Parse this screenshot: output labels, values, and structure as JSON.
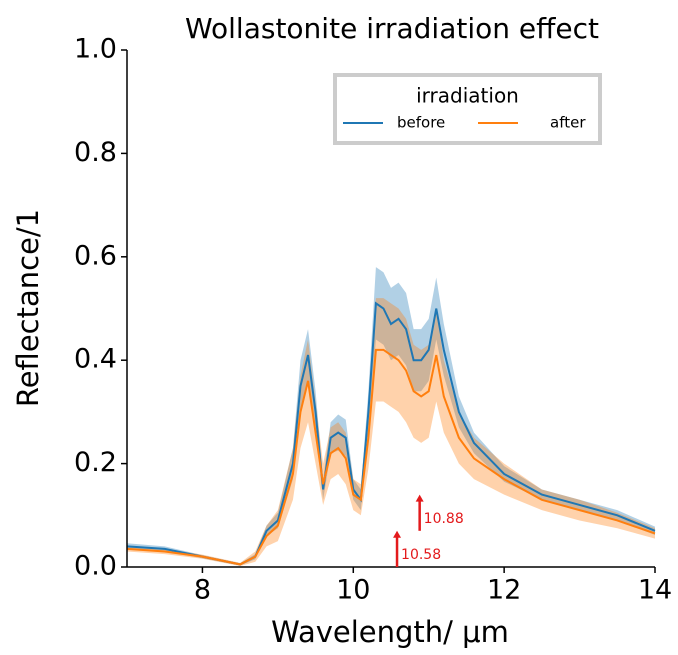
{
  "chart_data": {
    "type": "line",
    "title": "Wollastonite irradiation effect",
    "x_label": "Wavelength/ μm",
    "y_label": "Reflectance/1",
    "xlim": [
      7,
      14
    ],
    "xticks": [
      8,
      10,
      12,
      14
    ],
    "ylim": [
      0,
      1
    ],
    "yticks": [
      {
        "value": 0,
        "label": "0.0"
      },
      0.2,
      0.4,
      0.6,
      0.8,
      {
        "value": 1,
        "label": "1.0"
      }
    ],
    "legend_title": "irradiation",
    "legend_position": "upper right",
    "x": [
      7,
      7.5,
      8,
      8.5,
      8.7,
      8.85,
      9,
      9.2,
      9.3,
      9.4,
      9.5,
      9.6,
      9.7,
      9.8,
      9.9,
      10,
      10.1,
      10.2,
      10.3,
      10.4,
      10.5,
      10.6,
      10.7,
      10.8,
      10.9,
      11,
      11.1,
      11.2,
      11.4,
      11.6,
      12,
      12.5,
      13,
      13.5,
      14
    ],
    "series": [
      {
        "name": "before",
        "color": "#1f77b4",
        "values": [
          0.04,
          0.035,
          0.02,
          0.005,
          0.02,
          0.07,
          0.09,
          0.2,
          0.35,
          0.41,
          0.3,
          0.15,
          0.25,
          0.26,
          0.25,
          0.15,
          0.13,
          0.3,
          0.51,
          0.5,
          0.47,
          0.48,
          0.46,
          0.4,
          0.4,
          0.42,
          0.5,
          0.42,
          0.3,
          0.24,
          0.18,
          0.14,
          0.12,
          0.1,
          0.07
        ],
        "errors": [
          0.006,
          0.005,
          0.003,
          0.002,
          0.005,
          0.01,
          0.015,
          0.03,
          0.05,
          0.05,
          0.04,
          0.02,
          0.03,
          0.035,
          0.035,
          0.02,
          0.02,
          0.04,
          0.07,
          0.07,
          0.07,
          0.07,
          0.07,
          0.06,
          0.06,
          0.06,
          0.06,
          0.05,
          0.03,
          0.02,
          0.015,
          0.01,
          0.01,
          0.01,
          0.008
        ]
      },
      {
        "name": "after",
        "color": "#ff7f0e",
        "values": [
          0.035,
          0.03,
          0.02,
          0.005,
          0.02,
          0.06,
          0.08,
          0.18,
          0.3,
          0.36,
          0.26,
          0.16,
          0.22,
          0.23,
          0.21,
          0.14,
          0.13,
          0.25,
          0.42,
          0.42,
          0.41,
          0.4,
          0.38,
          0.34,
          0.33,
          0.34,
          0.41,
          0.33,
          0.25,
          0.21,
          0.17,
          0.13,
          0.11,
          0.09,
          0.065
        ],
        "errors": [
          0.005,
          0.005,
          0.004,
          0.003,
          0.01,
          0.02,
          0.03,
          0.05,
          0.07,
          0.08,
          0.06,
          0.04,
          0.05,
          0.05,
          0.05,
          0.03,
          0.03,
          0.06,
          0.1,
          0.1,
          0.1,
          0.1,
          0.1,
          0.09,
          0.09,
          0.09,
          0.09,
          0.07,
          0.05,
          0.04,
          0.03,
          0.02,
          0.02,
          0.015,
          0.01
        ]
      }
    ],
    "annotations": [
      {
        "label": "10.58",
        "x": 10.58,
        "y": [
          0,
          0.07
        ],
        "color": "#e31a1c"
      },
      {
        "label": "10.88",
        "x": 10.88,
        "y": [
          0.07,
          0.14
        ],
        "color": "#e31a1c"
      }
    ]
  }
}
